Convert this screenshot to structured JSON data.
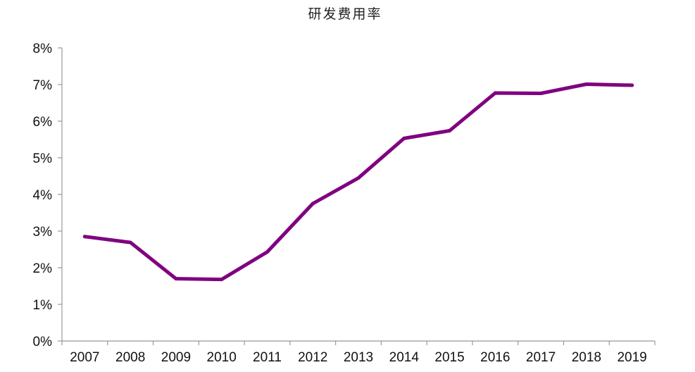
{
  "chart_data": {
    "type": "line",
    "title": "研发费用率",
    "xlabel": "",
    "ylabel": "",
    "categories": [
      "2007",
      "2008",
      "2009",
      "2010",
      "2011",
      "2012",
      "2013",
      "2014",
      "2015",
      "2016",
      "2017",
      "2018",
      "2019"
    ],
    "series": [
      {
        "values": [
          2.85,
          2.69,
          1.7,
          1.68,
          2.43,
          3.75,
          4.45,
          5.53,
          5.74,
          6.77,
          6.76,
          7.01,
          6.98
        ],
        "color": "#800080"
      }
    ],
    "ylim": [
      0,
      8
    ],
    "yticks": [
      0,
      1,
      2,
      3,
      4,
      5,
      6,
      7,
      8
    ],
    "ytick_labels": [
      "0%",
      "1%",
      "2%",
      "3%",
      "4%",
      "5%",
      "6%",
      "7%",
      "8%"
    ],
    "grid": false,
    "legend": "none"
  }
}
